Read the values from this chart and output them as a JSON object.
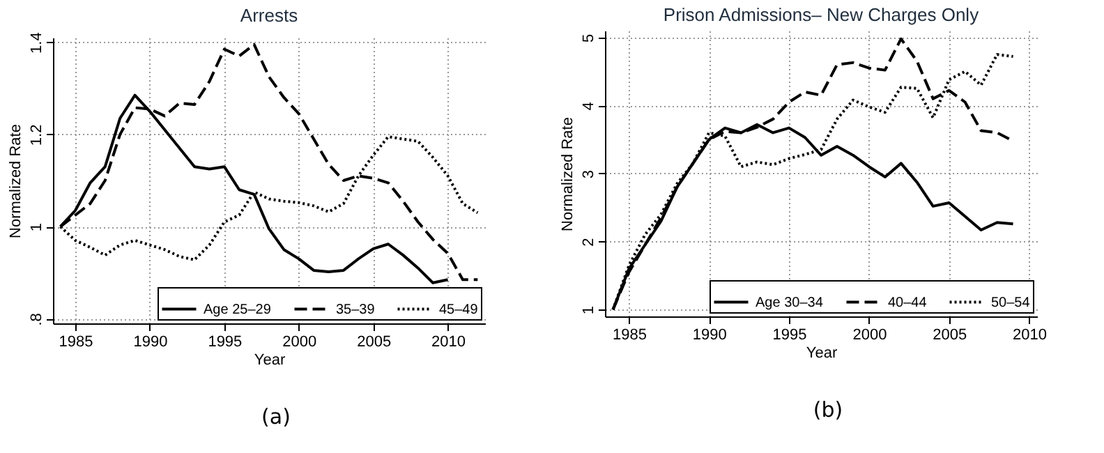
{
  "chart_data": [
    {
      "type": "line",
      "title": "Arrests",
      "xlabel": "Year",
      "ylabel": "Normalized Rate",
      "annotations": [
        "(a)"
      ],
      "x": [
        1984,
        1985,
        1986,
        1987,
        1988,
        1989,
        1990,
        1991,
        1992,
        1993,
        1994,
        1995,
        1996,
        1997,
        1998,
        1999,
        2000,
        2001,
        2002,
        2003,
        2004,
        2005,
        2006,
        2007,
        2008,
        2009,
        2010,
        2011,
        2012
      ],
      "series": [
        {
          "name": "Age 25–29",
          "color": "#000000",
          "line_style": "solid",
          "values": [
            1.0,
            1.035,
            1.095,
            1.13,
            1.235,
            1.285,
            1.25,
            1.21,
            1.17,
            1.13,
            1.125,
            1.13,
            1.08,
            1.07,
            0.995,
            0.95,
            0.93,
            0.905,
            0.902,
            0.905,
            0.93,
            0.952,
            0.962,
            0.938,
            0.91,
            0.878,
            0.885,
            null,
            null
          ]
        },
        {
          "name": "35–39",
          "color": "#000000",
          "line_style": "dashed",
          "values": [
            1.0,
            1.025,
            1.05,
            1.1,
            1.2,
            1.258,
            1.255,
            1.24,
            1.268,
            1.265,
            1.315,
            1.385,
            1.37,
            1.395,
            1.325,
            1.28,
            1.245,
            1.19,
            1.135,
            1.1,
            1.11,
            1.105,
            1.095,
            1.055,
            1.01,
            0.972,
            0.942,
            0.885,
            0.885
          ]
        },
        {
          "name": "45–49",
          "color": "#000000",
          "line_style": "dotted",
          "values": [
            1.0,
            0.97,
            0.955,
            0.938,
            0.96,
            0.97,
            0.96,
            0.95,
            0.935,
            0.928,
            0.96,
            1.01,
            1.025,
            1.075,
            1.06,
            1.055,
            1.052,
            1.045,
            1.032,
            1.05,
            1.11,
            1.155,
            1.195,
            1.19,
            1.185,
            1.15,
            1.11,
            1.05,
            1.03
          ]
        }
      ],
      "xlim": [
        1983.5,
        2012.5
      ],
      "xticks": [
        1985,
        1990,
        1995,
        2000,
        2005,
        2010
      ],
      "ylim": [
        0.79,
        1.41
      ],
      "yticks": [
        {
          "value": 0.8,
          "label": ".8"
        },
        1,
        1.2,
        1.4
      ],
      "grid": true,
      "legend": "bottom right"
    },
    {
      "type": "line",
      "title": "Prison Admissions– New Charges Only",
      "xlabel": "Year",
      "ylabel": "Normalized Rate",
      "annotations": [
        "(b)"
      ],
      "x": [
        1984,
        1985,
        1986,
        1987,
        1988,
        1989,
        1990,
        1991,
        1992,
        1993,
        1994,
        1995,
        1996,
        1997,
        1998,
        1999,
        2000,
        2001,
        2002,
        2003,
        2004,
        2005,
        2006,
        2007,
        2008,
        2009
      ],
      "series": [
        {
          "name": "Age 30–34",
          "color": "#000000",
          "line_style": "solid",
          "values": [
            1.0,
            1.6,
            1.95,
            2.3,
            2.8,
            3.15,
            3.5,
            3.67,
            3.6,
            3.72,
            3.6,
            3.67,
            3.53,
            3.27,
            3.4,
            3.27,
            3.1,
            2.95,
            3.15,
            2.87,
            2.52,
            2.57,
            2.37,
            2.17,
            2.28,
            2.26
          ]
        },
        {
          "name": "40–44",
          "color": "#000000",
          "line_style": "dashed",
          "values": [
            1.0,
            1.55,
            1.95,
            2.35,
            2.8,
            3.15,
            3.5,
            3.62,
            3.6,
            3.68,
            3.8,
            4.05,
            4.2,
            4.15,
            4.6,
            4.63,
            4.55,
            4.52,
            4.98,
            4.65,
            4.1,
            4.22,
            4.05,
            3.63,
            3.6,
            3.48
          ]
        },
        {
          "name": "50–54",
          "color": "#000000",
          "line_style": "dotted",
          "values": [
            1.0,
            1.65,
            2.1,
            2.4,
            2.85,
            3.15,
            3.6,
            3.55,
            3.1,
            3.17,
            3.13,
            3.22,
            3.28,
            3.35,
            3.8,
            4.08,
            3.98,
            3.9,
            4.27,
            4.25,
            3.82,
            4.38,
            4.5,
            4.3,
            4.75,
            4.72
          ]
        }
      ],
      "xlim": [
        1983.5,
        2010.5
      ],
      "xticks": [
        1985,
        1990,
        1995,
        2000,
        2005,
        2010
      ],
      "ylim": [
        0.9,
        5.1
      ],
      "yticks": [
        1,
        2,
        3,
        4,
        5
      ],
      "grid": true,
      "legend": "bottom right"
    }
  ]
}
